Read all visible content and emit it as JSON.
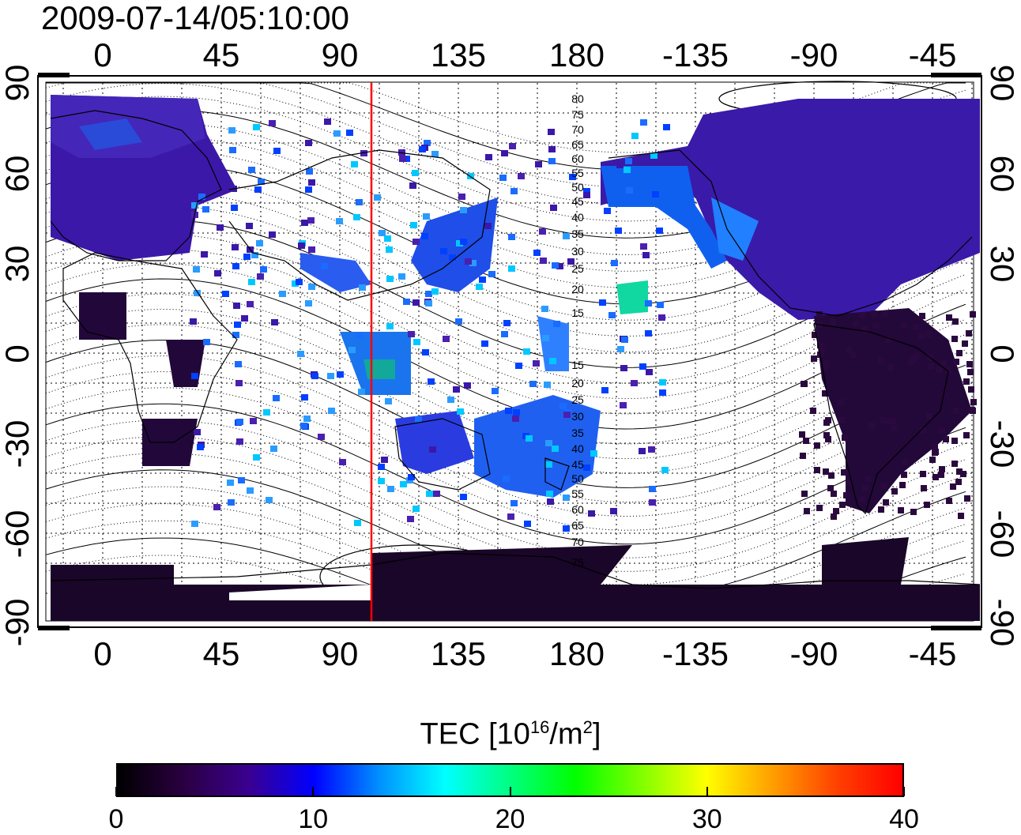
{
  "timestamp": "2009-07-14/05:10:00",
  "map": {
    "top_ticks": [
      "0",
      "45",
      "90",
      "135",
      "180",
      "-135",
      "-90",
      "-45"
    ],
    "bottom_ticks": [
      "0",
      "45",
      "90",
      "135",
      "180",
      "-135",
      "-90",
      "-45"
    ],
    "left_ticks": [
      "90",
      "60",
      "30",
      "0",
      "-30",
      "-60",
      "-90"
    ],
    "right_ticks": [
      "90",
      "60",
      "30",
      "0",
      "-30",
      "-60",
      "-90"
    ],
    "contour_labels": [
      "80",
      "75",
      "70",
      "65",
      "60",
      "55",
      "50",
      "45",
      "40",
      "35",
      "30",
      "25",
      "20",
      "15",
      "15",
      "20",
      "25",
      "30",
      "35",
      "40",
      "45",
      "50",
      "55",
      "60",
      "65",
      "70",
      "75"
    ],
    "meridian_marker_longitude": 102,
    "meridian_marker_color": "#ff0000"
  },
  "colorbar": {
    "title_prefix": "TEC  [10",
    "title_exponent": "16",
    "title_mid": "/m",
    "title_exponent2": "2",
    "title_suffix": "]",
    "tick_labels": [
      "0",
      "10",
      "20",
      "30",
      "40"
    ],
    "colors": [
      "#000000",
      "#2a0040",
      "#3a0090",
      "#0000ff",
      "#0090ff",
      "#00ffff",
      "#00ff80",
      "#00ff00",
      "#80ff00",
      "#ffff00",
      "#ffa000",
      "#ff4000",
      "#ff0000"
    ]
  }
}
